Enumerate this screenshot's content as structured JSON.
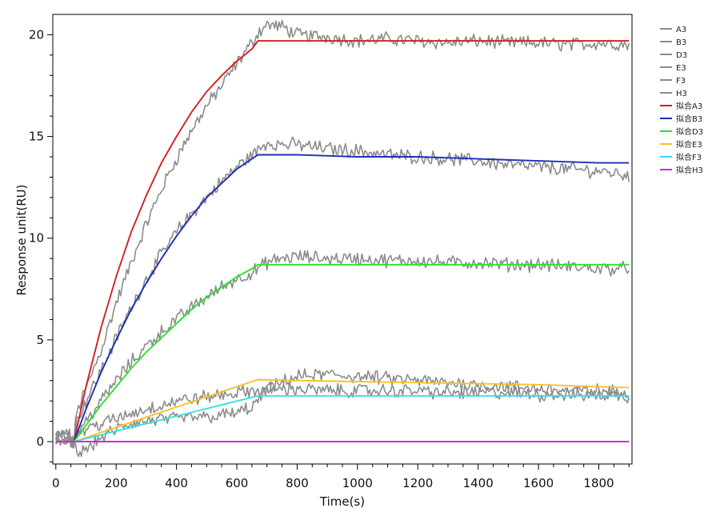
{
  "chart_data": {
    "type": "line",
    "title": "",
    "xlabel": "Time(s)",
    "ylabel": "Response unit(RU)",
    "xlim": [
      -10,
      1910
    ],
    "ylim": [
      -1.1,
      21.0
    ],
    "x_ticks": [
      0,
      200,
      400,
      600,
      800,
      1000,
      1200,
      1400,
      1600,
      1800
    ],
    "y_ticks": [
      0,
      5,
      10,
      15,
      20
    ],
    "x_tick_labels": [
      "0",
      "200",
      "400",
      "600",
      "800",
      "1000",
      "1200",
      "1400",
      "1600",
      "1800"
    ],
    "y_tick_labels": [
      "0",
      "5",
      "10",
      "15",
      "20"
    ],
    "grid": false,
    "legend_position": "right",
    "series": [
      {
        "name": "A3",
        "color": "#8c8c8c",
        "kind": "raw",
        "x": [
          0,
          40,
          60,
          70,
          100,
          150,
          200,
          250,
          300,
          350,
          400,
          450,
          500,
          550,
          600,
          650,
          670,
          700,
          750,
          800,
          900,
          1000,
          1100,
          1200,
          1300,
          1400,
          1500,
          1600,
          1700,
          1800,
          1900
        ],
        "y": [
          0.3,
          0.4,
          0.1,
          1.5,
          2.6,
          4.5,
          6.8,
          8.8,
          10.7,
          12.4,
          13.9,
          15.3,
          16.5,
          17.5,
          18.6,
          19.6,
          20.1,
          20.5,
          20.4,
          20.0,
          19.9,
          19.7,
          19.8,
          19.7,
          19.6,
          19.7,
          19.6,
          19.6,
          19.5,
          19.6,
          19.5
        ]
      },
      {
        "name": "B3",
        "color": "#8c8c8c",
        "kind": "raw",
        "x": [
          0,
          40,
          60,
          70,
          100,
          150,
          200,
          250,
          300,
          350,
          400,
          450,
          500,
          550,
          600,
          650,
          670,
          700,
          750,
          800,
          900,
          1000,
          1100,
          1200,
          1300,
          1400,
          1500,
          1600,
          1700,
          1800,
          1900
        ],
        "y": [
          0.2,
          0.3,
          0.0,
          1.0,
          2.0,
          3.5,
          5.1,
          6.6,
          8.0,
          9.2,
          10.3,
          11.2,
          12.0,
          12.8,
          13.5,
          14.1,
          14.3,
          14.7,
          14.6,
          14.6,
          14.4,
          14.3,
          14.1,
          14.0,
          13.9,
          13.8,
          13.6,
          13.5,
          13.4,
          13.3,
          13.1
        ]
      },
      {
        "name": "D3",
        "color": "#8c8c8c",
        "kind": "raw",
        "x": [
          0,
          40,
          60,
          70,
          100,
          150,
          200,
          250,
          300,
          350,
          400,
          450,
          500,
          550,
          600,
          650,
          670,
          700,
          750,
          800,
          900,
          1000,
          1100,
          1200,
          1300,
          1400,
          1500,
          1600,
          1700,
          1800,
          1900
        ],
        "y": [
          0.1,
          0.2,
          0.0,
          0.4,
          1.0,
          2.0,
          3.0,
          3.9,
          4.7,
          5.4,
          6.0,
          6.6,
          7.1,
          7.6,
          8.0,
          8.3,
          8.5,
          8.8,
          9.0,
          9.1,
          9.0,
          9.0,
          8.9,
          8.9,
          8.8,
          8.8,
          8.7,
          8.7,
          8.6,
          8.5,
          8.5
        ]
      },
      {
        "name": "E3",
        "color": "#8c8c8c",
        "kind": "raw",
        "x": [
          0,
          40,
          60,
          70,
          100,
          150,
          200,
          250,
          300,
          350,
          400,
          450,
          500,
          550,
          600,
          650,
          670,
          700,
          750,
          800,
          900,
          1000,
          1100,
          1200,
          1300,
          1400,
          1500,
          1600,
          1700,
          1800,
          1900
        ],
        "y": [
          0.2,
          0.3,
          -0.1,
          -0.6,
          -0.4,
          0.2,
          0.6,
          0.9,
          1.0,
          1.1,
          1.1,
          1.2,
          1.2,
          1.3,
          1.4,
          1.7,
          2.0,
          2.5,
          2.9,
          3.2,
          3.3,
          3.2,
          3.1,
          3.0,
          2.9,
          2.8,
          2.7,
          2.6,
          2.5,
          2.5,
          2.4
        ]
      },
      {
        "name": "F3",
        "color": "#8c8c8c",
        "kind": "raw",
        "x": [
          0,
          40,
          60,
          70,
          100,
          150,
          200,
          250,
          300,
          350,
          400,
          450,
          500,
          550,
          600,
          650,
          670,
          700,
          750,
          800,
          900,
          1000,
          1100,
          1200,
          1300,
          1400,
          1500,
          1600,
          1700,
          1800,
          1900
        ],
        "y": [
          0.1,
          0.2,
          0.0,
          0.4,
          0.6,
          0.9,
          1.1,
          1.4,
          1.6,
          1.8,
          2.0,
          2.1,
          2.2,
          2.3,
          2.4,
          2.5,
          2.5,
          2.6,
          2.6,
          2.6,
          2.5,
          2.5,
          2.5,
          2.5,
          2.4,
          2.4,
          2.4,
          2.3,
          2.3,
          2.3,
          2.2
        ]
      },
      {
        "name": "H3",
        "color": "#8c8c8c",
        "kind": "raw",
        "x": [
          0,
          1900
        ],
        "y": [
          0.0,
          0.0
        ]
      },
      {
        "name": "拟合A3",
        "color": "#d42020",
        "kind": "fit",
        "x": [
          0,
          60,
          100,
          150,
          200,
          250,
          300,
          350,
          400,
          450,
          500,
          550,
          600,
          650,
          670,
          800,
          1000,
          1200,
          1400,
          1600,
          1800,
          1900
        ],
        "y": [
          0.0,
          0.0,
          2.7,
          5.6,
          8.1,
          10.3,
          12.1,
          13.7,
          15.0,
          16.2,
          17.2,
          18.0,
          18.7,
          19.3,
          19.7,
          19.7,
          19.7,
          19.7,
          19.7,
          19.7,
          19.7,
          19.7
        ]
      },
      {
        "name": "拟合B3",
        "color": "#1e2fb8",
        "kind": "fit",
        "x": [
          0,
          60,
          100,
          150,
          200,
          250,
          300,
          350,
          400,
          450,
          500,
          550,
          600,
          650,
          670,
          800,
          1000,
          1200,
          1400,
          1600,
          1800,
          1900
        ],
        "y": [
          0.0,
          0.0,
          1.6,
          3.4,
          5.0,
          6.5,
          7.8,
          9.0,
          10.1,
          11.1,
          12.0,
          12.7,
          13.4,
          13.9,
          14.1,
          14.1,
          14.0,
          14.0,
          13.9,
          13.8,
          13.7,
          13.7
        ]
      },
      {
        "name": "拟合D3",
        "color": "#2ee02e",
        "kind": "fit",
        "x": [
          0,
          60,
          100,
          150,
          200,
          250,
          300,
          350,
          400,
          450,
          500,
          550,
          600,
          650,
          670,
          800,
          1000,
          1200,
          1400,
          1600,
          1800,
          1900
        ],
        "y": [
          0.0,
          0.0,
          0.8,
          1.8,
          2.7,
          3.6,
          4.4,
          5.1,
          5.8,
          6.5,
          7.1,
          7.6,
          8.1,
          8.5,
          8.7,
          8.7,
          8.7,
          8.7,
          8.7,
          8.7,
          8.7,
          8.7
        ]
      },
      {
        "name": "拟合E3",
        "color": "#f2c42a",
        "kind": "fit",
        "x": [
          0,
          60,
          670,
          800,
          1000,
          1200,
          1400,
          1600,
          1800,
          1900
        ],
        "y": [
          0.0,
          0.0,
          3.05,
          3.0,
          2.95,
          2.9,
          2.85,
          2.8,
          2.7,
          2.65
        ]
      },
      {
        "name": "拟合F3",
        "color": "#33e0e6",
        "kind": "fit",
        "x": [
          0,
          60,
          670,
          800,
          1000,
          1200,
          1400,
          1600,
          1800,
          1900
        ],
        "y": [
          0.0,
          0.0,
          2.25,
          2.25,
          2.25,
          2.25,
          2.25,
          2.25,
          2.25,
          2.25
        ]
      },
      {
        "name": "拟合H3",
        "color": "#d02bd2",
        "kind": "fit",
        "x": [
          0,
          1900
        ],
        "y": [
          0.0,
          0.0
        ]
      }
    ]
  }
}
